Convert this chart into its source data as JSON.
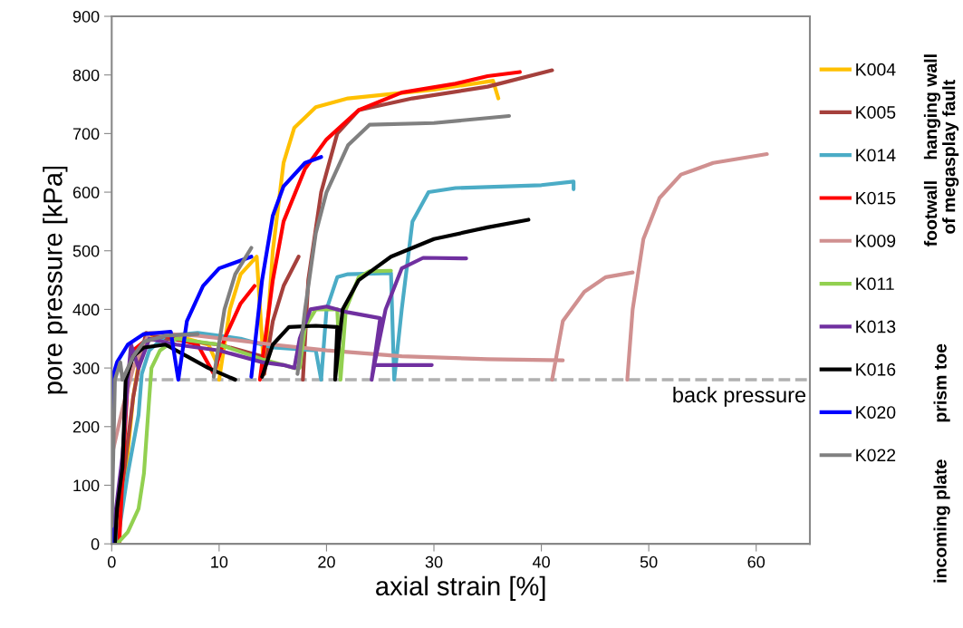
{
  "chart_data": {
    "type": "line",
    "xlabel": "axial strain [%]",
    "ylabel": "pore pressure [kPa]",
    "xlim": [
      0,
      65
    ],
    "xticks": [
      0,
      10,
      20,
      30,
      40,
      50,
      60
    ],
    "ylim": [
      0,
      900
    ],
    "yticks": [
      0,
      100,
      200,
      300,
      400,
      500,
      600,
      700,
      800,
      900
    ],
    "grid": false,
    "legend": "right",
    "marker": "none",
    "line_style": "solid",
    "ref_lines": [
      {
        "axis": "y",
        "value": 280,
        "label": "back pressure",
        "color": "#b0b0b0",
        "line_style": "dashed"
      }
    ],
    "annotations": [
      "hanging wall",
      "footwall",
      "of megasplay fault",
      "prism toe",
      "incoming plate"
    ],
    "series": [
      {
        "name": "K004",
        "color": "#ffc000",
        "x": [
          0.5,
          1.2,
          2,
          2.8,
          4,
          6,
          9,
          10,
          null,
          10,
          11,
          12,
          13.5,
          14.2,
          15,
          16,
          17,
          19,
          22,
          30,
          35.5,
          36
        ],
        "values": [
          0,
          100,
          250,
          340,
          355,
          355,
          340,
          300,
          null,
          280,
          400,
          460,
          490,
          290,
          500,
          650,
          710,
          745,
          760,
          775,
          790,
          760
        ]
      },
      {
        "name": "K005",
        "color": "#a5403c",
        "x": [
          0,
          1,
          2,
          2.5,
          3.2,
          5,
          10,
          14,
          14.2,
          15,
          16,
          17.4,
          null,
          17.8,
          18.3,
          19.5,
          21,
          23,
          28,
          35,
          41
        ],
        "values": [
          0,
          100,
          250,
          300,
          360,
          350,
          340,
          320,
          290,
          380,
          440,
          490,
          null,
          280,
          450,
          600,
          700,
          740,
          760,
          780,
          808
        ]
      },
      {
        "name": "K014",
        "color": "#4bacc6",
        "x": [
          0.5,
          1.5,
          2.5,
          2.8,
          3.5,
          5,
          8,
          12,
          15,
          19,
          19.5,
          20,
          21,
          22,
          26,
          26.3,
          27,
          28,
          29.5,
          32,
          40,
          43,
          43
        ],
        "values": [
          0,
          120,
          220,
          290,
          330,
          355,
          360,
          350,
          335,
          330,
          280,
          400,
          455,
          460,
          462,
          280,
          400,
          550,
          600,
          607,
          612,
          618,
          605
        ]
      },
      {
        "name": "K015",
        "color": "#ff0000",
        "x": [
          0.7,
          1.1,
          1.5,
          2,
          3,
          5,
          8,
          9.5,
          10.5,
          12,
          13.3,
          null,
          13.8,
          15,
          16,
          18,
          20,
          23,
          27,
          32,
          35,
          38
        ],
        "values": [
          0,
          150,
          280,
          330,
          345,
          355,
          340,
          290,
          350,
          410,
          440,
          null,
          280,
          450,
          550,
          640,
          690,
          740,
          770,
          785,
          798,
          805
        ]
      },
      {
        "name": "K009",
        "color": "#d09090",
        "x": [
          0,
          1,
          2,
          3.5,
          8,
          15,
          20,
          27,
          35,
          42,
          null,
          41,
          42,
          44,
          46,
          48.5,
          null,
          48,
          48.5,
          49.5,
          51,
          53,
          56,
          61
        ],
        "values": [
          150,
          230,
          300,
          360,
          355,
          340,
          330,
          320,
          315,
          313,
          null,
          280,
          380,
          430,
          455,
          463,
          null,
          280,
          400,
          520,
          590,
          630,
          650,
          665
        ]
      },
      {
        "name": "K011",
        "color": "#92d050",
        "x": [
          0.5,
          1.5,
          2.5,
          3,
          3.5,
          3.7,
          4.5,
          6,
          10,
          14,
          17,
          17.5,
          18,
          19,
          21,
          21.3,
          21.8,
          23,
          24,
          26
        ],
        "values": [
          0,
          20,
          60,
          120,
          250,
          300,
          330,
          350,
          340,
          315,
          300,
          300,
          370,
          400,
          400,
          280,
          400,
          455,
          465,
          466
        ]
      },
      {
        "name": "K013",
        "color": "#7030a0",
        "x": [
          0,
          1,
          1.5,
          1.8,
          2.5,
          3.5,
          6,
          10,
          14,
          16,
          17,
          17.5,
          18.5,
          20,
          22,
          25,
          24.2,
          24.5,
          25.5,
          27,
          29,
          33,
          null,
          24.5,
          29.8
        ],
        "values": [
          0,
          150,
          280,
          340,
          300,
          350,
          340,
          330,
          310,
          305,
          300,
          350,
          400,
          405,
          395,
          385,
          280,
          310,
          400,
          470,
          488,
          487,
          null,
          305,
          305
        ]
      },
      {
        "name": "K016",
        "color": "#000000",
        "x": [
          0.3,
          0.5,
          1,
          1.3,
          2,
          3,
          5,
          7,
          9,
          11.5,
          null,
          14,
          15,
          16.5,
          19,
          21,
          20.8,
          21.5,
          23,
          26,
          30,
          35,
          38.8
        ],
        "values": [
          0,
          60,
          130,
          280,
          320,
          335,
          340,
          320,
          300,
          280,
          null,
          285,
          340,
          370,
          372,
          370,
          280,
          400,
          450,
          490,
          520,
          540,
          553
        ]
      },
      {
        "name": "K020",
        "color": "#0000ff",
        "x": [
          0,
          0,
          0.5,
          1.5,
          3,
          5.5,
          6.2,
          7,
          8.5,
          10,
          13,
          null,
          13,
          14,
          15,
          16,
          18,
          19.5
        ],
        "values": [
          0,
          280,
          310,
          340,
          358,
          362,
          280,
          380,
          440,
          470,
          490,
          null,
          285,
          450,
          560,
          610,
          650,
          660
        ]
      },
      {
        "name": "K022",
        "color": "#808080",
        "x": [
          0,
          0.3,
          0.8,
          1,
          2,
          3,
          5,
          8,
          null,
          9.5,
          10.5,
          11.5,
          13,
          null,
          17.3,
          18,
          19,
          20,
          22,
          24,
          30,
          37
        ],
        "values": [
          30,
          280,
          310,
          280,
          320,
          345,
          355,
          358,
          null,
          285,
          400,
          460,
          505,
          null,
          290,
          400,
          530,
          600,
          680,
          715,
          718,
          730
        ]
      }
    ]
  }
}
